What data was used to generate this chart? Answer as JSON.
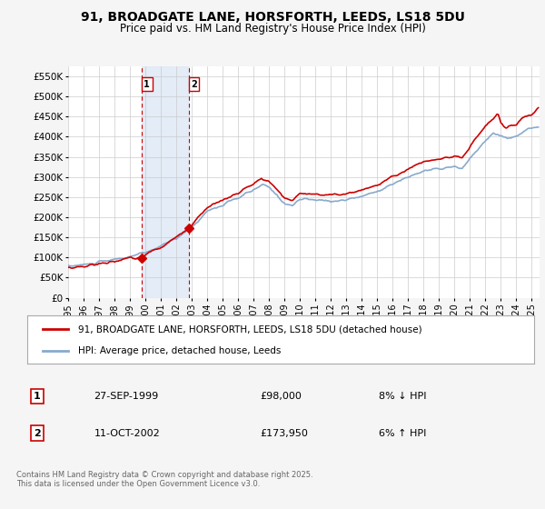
{
  "title": "91, BROADGATE LANE, HORSFORTH, LEEDS, LS18 5DU",
  "subtitle": "Price paid vs. HM Land Registry's House Price Index (HPI)",
  "ylim": [
    0,
    575000
  ],
  "yticks": [
    0,
    50000,
    100000,
    150000,
    200000,
    250000,
    300000,
    350000,
    400000,
    450000,
    500000,
    550000
  ],
  "ytick_labels": [
    "£0",
    "£50K",
    "£100K",
    "£150K",
    "£200K",
    "£250K",
    "£300K",
    "£350K",
    "£400K",
    "£450K",
    "£500K",
    "£550K"
  ],
  "xlim_start": 1995.0,
  "xlim_end": 2025.5,
  "xtick_years": [
    1995,
    1996,
    1997,
    1998,
    1999,
    2000,
    2001,
    2002,
    2003,
    2004,
    2005,
    2006,
    2007,
    2008,
    2009,
    2010,
    2011,
    2012,
    2013,
    2014,
    2015,
    2016,
    2017,
    2018,
    2019,
    2020,
    2021,
    2022,
    2023,
    2024,
    2025
  ],
  "sale1_x": 1999.75,
  "sale1_y": 98000,
  "sale1_label": "1",
  "sale1_date": "27-SEP-1999",
  "sale1_price": "£98,000",
  "sale1_hpi": "8% ↓ HPI",
  "sale2_x": 2002.79,
  "sale2_y": 173950,
  "sale2_label": "2",
  "sale2_date": "11-OCT-2002",
  "sale2_price": "£173,950",
  "sale2_hpi": "6% ↑ HPI",
  "shade_x1": 1999.75,
  "shade_x2": 2002.79,
  "line_color_property": "#cc0000",
  "line_color_hpi": "#88aacc",
  "legend_label_property": "91, BROADGATE LANE, HORSFORTH, LEEDS, LS18 5DU (detached house)",
  "legend_label_hpi": "HPI: Average price, detached house, Leeds",
  "footer": "Contains HM Land Registry data © Crown copyright and database right 2025.\nThis data is licensed under the Open Government Licence v3.0.",
  "bg_color": "#f5f5f5",
  "plot_bg": "#ffffff",
  "grid_color": "#cccccc"
}
